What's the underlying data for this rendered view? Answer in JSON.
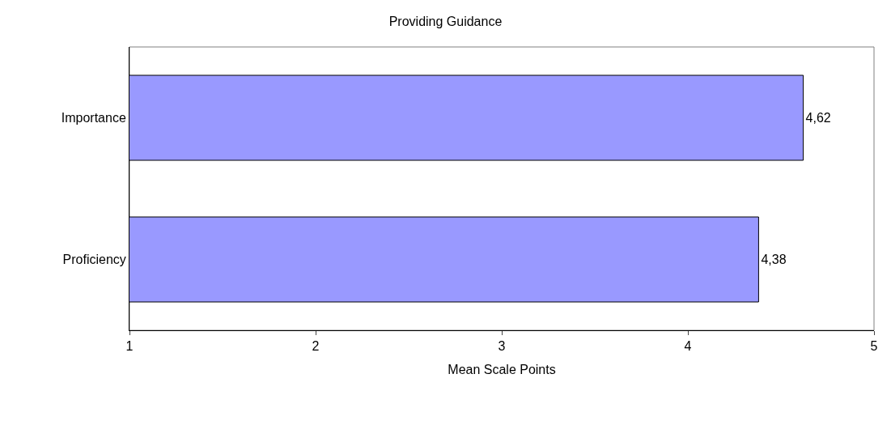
{
  "chart_data": {
    "type": "bar",
    "orientation": "horizontal",
    "title": "Providing Guidance",
    "xlabel": "Mean Scale Points",
    "categories": [
      "Importance",
      "Proficiency"
    ],
    "values": [
      4.62,
      4.38
    ],
    "value_labels": [
      "4,62",
      "4,38"
    ],
    "color": "#9999ff",
    "xlim": [
      1,
      5
    ],
    "xticks": [
      1,
      2,
      3,
      4,
      5
    ],
    "grid": false,
    "legend": false
  }
}
